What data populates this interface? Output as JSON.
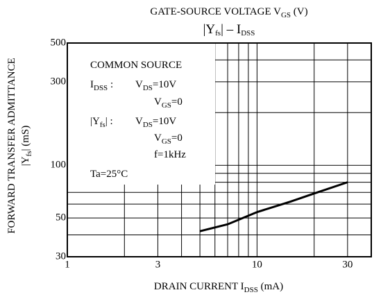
{
  "chart_data": {
    "type": "line",
    "header": [
      "GATE-SOURCE VOLTAGE  V",
      {
        "sub": "GS"
      },
      "  (V)"
    ],
    "title": [
      "|Y",
      {
        "sub": "fs"
      },
      "|  –  I",
      {
        "sub": "DSS"
      }
    ],
    "ylabel": [
      [
        "FORWARD TRANSFER ADMITTANCE"
      ],
      [
        "|Y",
        {
          "sub": "fs"
        },
        "|  (mS)"
      ]
    ],
    "xlabel": [
      "DRAIN CURRENT  I",
      {
        "sub": "DSS"
      },
      "  (mA)"
    ],
    "annotations": [
      {
        "text": [
          "COMMON SOURCE"
        ]
      },
      {
        "label": [
          "I",
          {
            "sub": "DSS"
          },
          "  :"
        ],
        "value": [
          "V",
          {
            "sub": "DS"
          },
          "=10V"
        ]
      },
      {
        "value": [
          "V",
          {
            "sub": "GS"
          },
          "=0"
        ]
      },
      {
        "label": [
          "|Y",
          {
            "sub": "fs"
          },
          "|  :"
        ],
        "value": [
          "V",
          {
            "sub": "DS"
          },
          "=10V"
        ]
      },
      {
        "value": [
          "V",
          {
            "sub": "GS"
          },
          "=0"
        ]
      },
      {
        "value": [
          "f=1kHz"
        ]
      },
      {
        "text": [
          "Ta=25°C"
        ]
      }
    ],
    "xlog": true,
    "ylog": true,
    "xlim": [
      1,
      40
    ],
    "ylim": [
      30,
      500
    ],
    "xticks": [
      1,
      3,
      10,
      30
    ],
    "yticks": [
      30,
      50,
      100,
      300,
      500
    ],
    "xgrid": [
      2,
      3,
      4,
      5,
      6,
      7,
      8,
      9,
      10,
      20,
      30
    ],
    "ygrid": [
      40,
      50,
      60,
      70,
      80,
      90,
      100,
      200,
      300,
      400
    ],
    "grid": true,
    "series": [
      {
        "color": "#000000",
        "x": [
          5,
          7,
          10,
          15,
          20,
          30
        ],
        "values": [
          42,
          46,
          54,
          62,
          69,
          80
        ]
      }
    ]
  }
}
